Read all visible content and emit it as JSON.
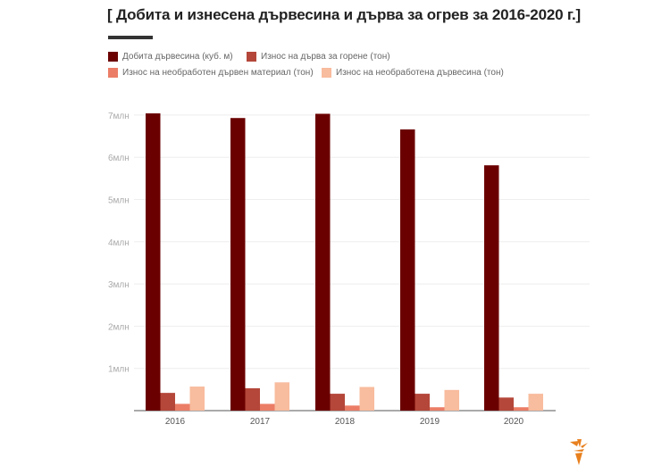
{
  "chart_data": {
    "type": "bar",
    "title": "[ Добита и изнесена дървесина и дърва за огрев за 2016-2020 г.]",
    "xlabel": "",
    "ylabel": "",
    "categories": [
      "2016",
      "2017",
      "2018",
      "2019",
      "2020"
    ],
    "ylim": [
      0,
      7
    ],
    "yticks": [
      {
        "v": 1,
        "label": "1млн"
      },
      {
        "v": 2,
        "label": "2млн"
      },
      {
        "v": 3,
        "label": "3млн"
      },
      {
        "v": 4,
        "label": "4млн"
      },
      {
        "v": 5,
        "label": "5млн"
      },
      {
        "v": 6,
        "label": "6млн"
      },
      {
        "v": 7,
        "label": "7млн"
      }
    ],
    "grid": true,
    "legend_placement": "top-left",
    "series": [
      {
        "name": "Добита дървесина (куб. м)",
        "color": "#6b0000",
        "values": [
          7.04,
          6.93,
          7.03,
          6.66,
          5.81
        ]
      },
      {
        "name": "Износ на дърва за горене (тон)",
        "color": "#b4473a",
        "values": [
          0.42,
          0.53,
          0.4,
          0.4,
          0.31
        ]
      },
      {
        "name": "Износ на необработен дървен материал (тон)",
        "color": "#eb7d66",
        "values": [
          0.16,
          0.16,
          0.12,
          0.08,
          0.08
        ]
      },
      {
        "name": "Износ на необработена дървесина (тон)",
        "color": "#f8bc9e",
        "values": [
          0.57,
          0.67,
          0.56,
          0.49,
          0.4
        ]
      }
    ]
  },
  "logo": {
    "icon": "torch-logo-icon",
    "color": "#e8801e"
  }
}
